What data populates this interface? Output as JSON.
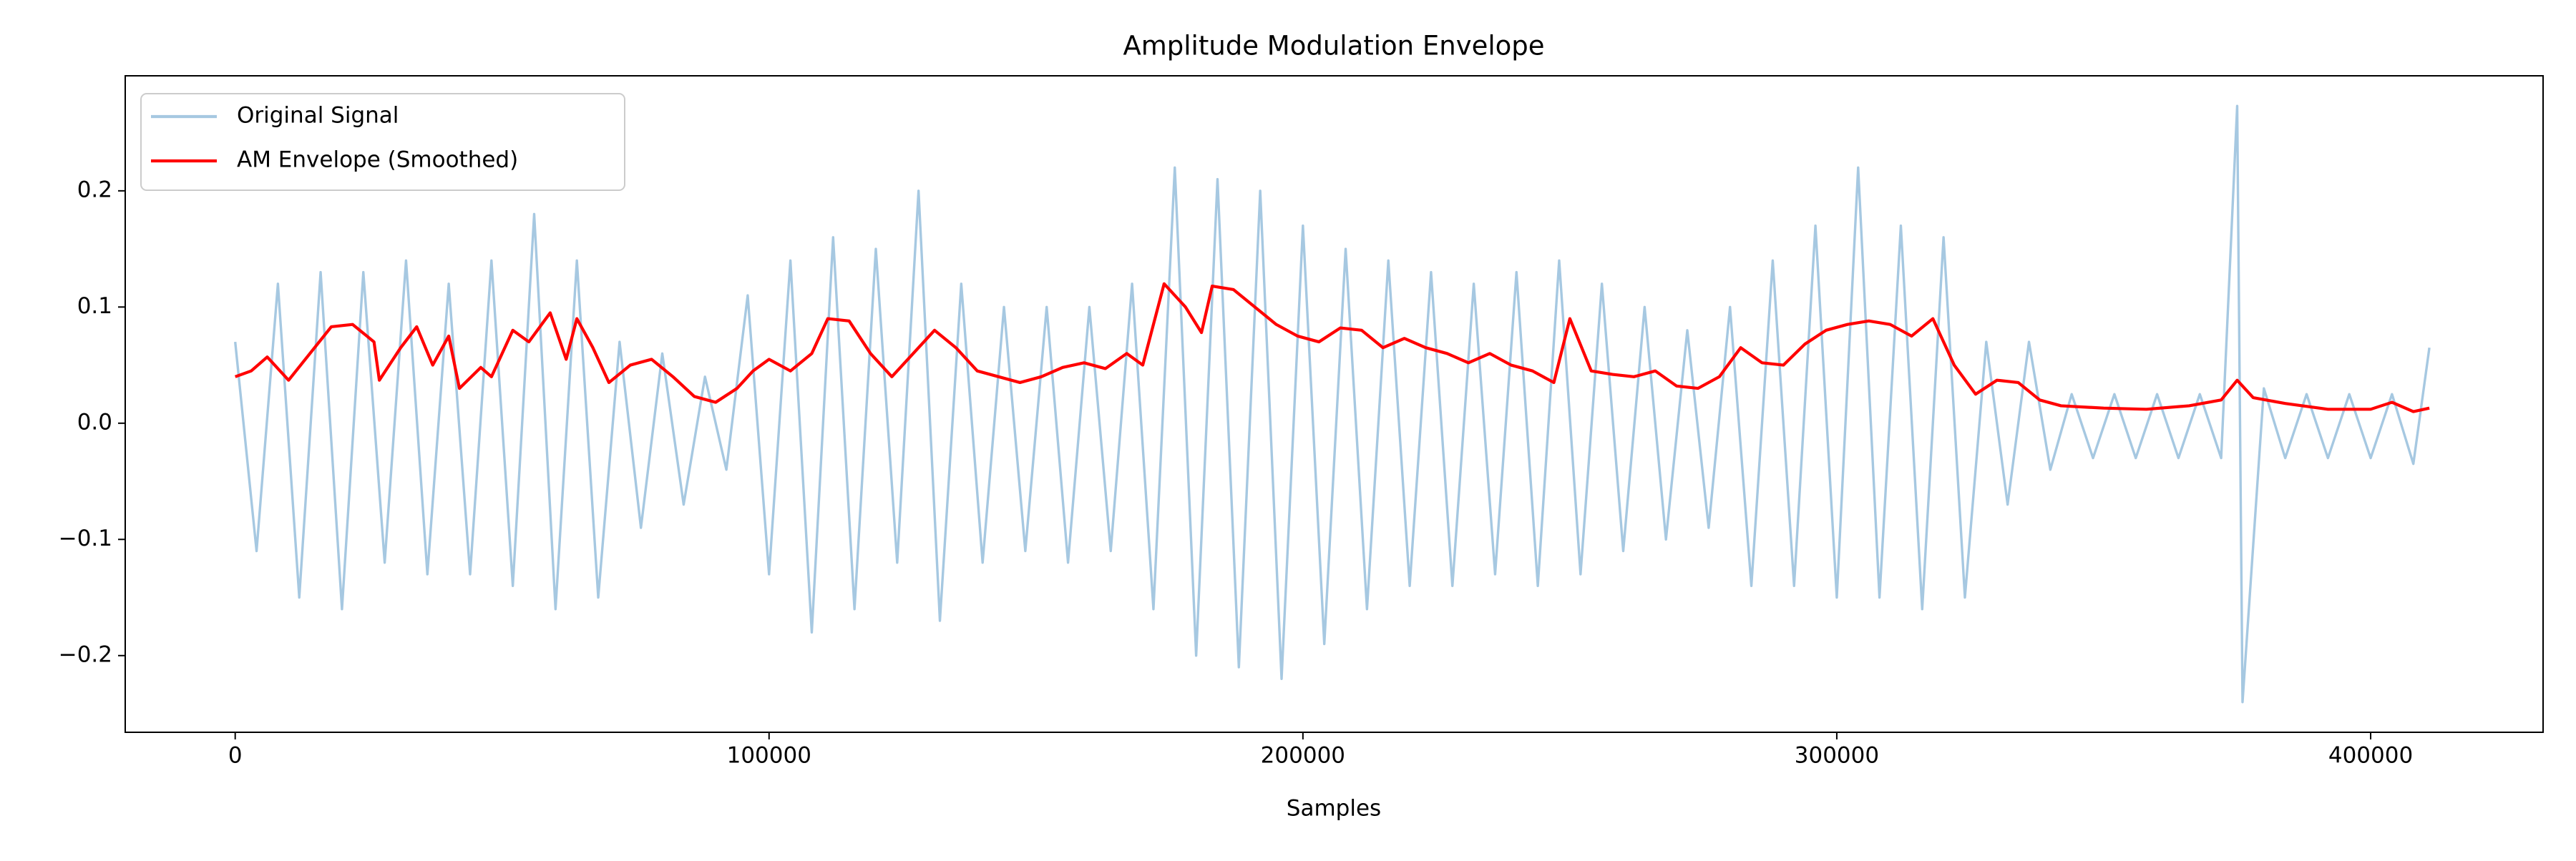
{
  "chart_data": {
    "type": "line",
    "title": "Amplitude Modulation Envelope",
    "xlabel": "Samples",
    "xlim": [
      -20600,
      432300
    ],
    "ylim": [
      -0.266,
      0.299
    ],
    "xticks": [
      0,
      100000,
      200000,
      300000,
      400000
    ],
    "yticks": [
      {
        "value": -0.2,
        "label": "−0.2"
      },
      {
        "value": -0.1,
        "label": "−0.1"
      },
      {
        "value": 0,
        "label": "0.0"
      },
      0.1,
      0.2
    ],
    "grid": false,
    "legend": "upper left",
    "series": [
      {
        "name": "Original Signal",
        "color": "#a6c8e1",
        "x": [
          0,
          4000,
          8000,
          12000,
          16000,
          20000,
          24000,
          28000,
          32000,
          36000,
          40000,
          44000,
          48000,
          52000,
          56000,
          60000,
          64000,
          68000,
          72000,
          76000,
          80000,
          84000,
          88000,
          92000,
          96000,
          100000,
          104000,
          108000,
          112000,
          116000,
          120000,
          124000,
          128000,
          132000,
          136000,
          140000,
          144000,
          148000,
          152000,
          156000,
          160000,
          164000,
          168000,
          172000,
          176000,
          180000,
          184000,
          188000,
          192000,
          196000,
          200000,
          204000,
          208000,
          212000,
          216000,
          220000,
          224000,
          228000,
          232000,
          236000,
          240000,
          244000,
          248000,
          252000,
          256000,
          260000,
          264000,
          268000,
          272000,
          276000,
          280000,
          284000,
          288000,
          292000,
          296000,
          300000,
          304000,
          308000,
          312000,
          316000,
          320000,
          324000,
          328000,
          332000,
          336000,
          340000,
          344000,
          348000,
          352000,
          356000,
          360000,
          364000,
          368000,
          372000,
          375000,
          376000,
          380000,
          384000,
          388000,
          392000,
          396000,
          400000,
          404000,
          408000,
          411000
        ],
        "values": [
          0.07,
          -0.11,
          0.12,
          -0.15,
          0.13,
          -0.16,
          0.13,
          -0.12,
          0.14,
          -0.13,
          0.12,
          -0.13,
          0.14,
          -0.14,
          0.18,
          -0.16,
          0.14,
          -0.15,
          0.07,
          -0.09,
          0.06,
          -0.07,
          0.04,
          -0.04,
          0.11,
          -0.13,
          0.14,
          -0.18,
          0.16,
          -0.16,
          0.15,
          -0.12,
          0.2,
          -0.17,
          0.12,
          -0.12,
          0.1,
          -0.11,
          0.1,
          -0.12,
          0.1,
          -0.11,
          0.12,
          -0.16,
          0.22,
          -0.2,
          0.21,
          -0.21,
          0.2,
          -0.22,
          0.17,
          -0.19,
          0.15,
          -0.16,
          0.14,
          -0.14,
          0.13,
          -0.14,
          0.12,
          -0.13,
          0.13,
          -0.14,
          0.14,
          -0.13,
          0.12,
          -0.11,
          0.1,
          -0.1,
          0.08,
          -0.09,
          0.1,
          -0.14,
          0.14,
          -0.14,
          0.17,
          -0.15,
          0.22,
          -0.15,
          0.17,
          -0.16,
          0.16,
          -0.15,
          0.07,
          -0.07,
          0.07,
          -0.04,
          0.025,
          -0.03,
          0.025,
          -0.03,
          0.025,
          -0.03,
          0.025,
          -0.03,
          0.273,
          -0.24,
          0.03,
          -0.03,
          0.025,
          -0.03,
          0.025,
          -0.03,
          0.025,
          -0.035,
          0.065
        ]
      },
      {
        "name": "AM Envelope (Smoothed)",
        "color": "#ff0000",
        "x": [
          0,
          3000,
          6000,
          10000,
          14000,
          18000,
          22000,
          26000,
          27000,
          31000,
          34000,
          37000,
          40000,
          42000,
          46000,
          48000,
          52000,
          55000,
          59000,
          62000,
          64000,
          67000,
          70000,
          74000,
          78000,
          82000,
          86000,
          90000,
          94000,
          97000,
          100000,
          104000,
          108000,
          111000,
          115000,
          119000,
          123000,
          127000,
          131000,
          135000,
          139000,
          143000,
          147000,
          151000,
          155000,
          159000,
          163000,
          167000,
          170000,
          174000,
          178000,
          181000,
          183000,
          187000,
          191000,
          195000,
          199000,
          203000,
          207000,
          211000,
          215000,
          219000,
          223000,
          227000,
          231000,
          235000,
          239000,
          243000,
          247000,
          250000,
          254000,
          258000,
          262000,
          266000,
          270000,
          274000,
          278000,
          282000,
          286000,
          290000,
          294000,
          298000,
          302000,
          306000,
          310000,
          314000,
          318000,
          322000,
          326000,
          330000,
          334000,
          338000,
          342000,
          350000,
          358000,
          366000,
          372000,
          375000,
          378000,
          384000,
          392000,
          400000,
          404000,
          408000,
          411000
        ],
        "values": [
          0.04,
          0.045,
          0.057,
          0.037,
          0.06,
          0.083,
          0.085,
          0.07,
          0.037,
          0.065,
          0.083,
          0.05,
          0.075,
          0.03,
          0.048,
          0.04,
          0.08,
          0.07,
          0.095,
          0.055,
          0.09,
          0.065,
          0.035,
          0.05,
          0.055,
          0.04,
          0.023,
          0.018,
          0.03,
          0.045,
          0.055,
          0.045,
          0.06,
          0.09,
          0.088,
          0.06,
          0.04,
          0.06,
          0.08,
          0.065,
          0.045,
          0.04,
          0.035,
          0.04,
          0.048,
          0.052,
          0.047,
          0.06,
          0.05,
          0.12,
          0.1,
          0.078,
          0.118,
          0.115,
          0.1,
          0.085,
          0.075,
          0.07,
          0.082,
          0.08,
          0.065,
          0.073,
          0.065,
          0.06,
          0.052,
          0.06,
          0.05,
          0.045,
          0.035,
          0.09,
          0.045,
          0.042,
          0.04,
          0.045,
          0.032,
          0.03,
          0.04,
          0.065,
          0.052,
          0.05,
          0.068,
          0.08,
          0.085,
          0.088,
          0.085,
          0.075,
          0.09,
          0.05,
          0.025,
          0.037,
          0.035,
          0.02,
          0.015,
          0.013,
          0.012,
          0.015,
          0.02,
          0.037,
          0.022,
          0.017,
          0.012,
          0.012,
          0.018,
          0.01,
          0.013
        ]
      }
    ]
  }
}
